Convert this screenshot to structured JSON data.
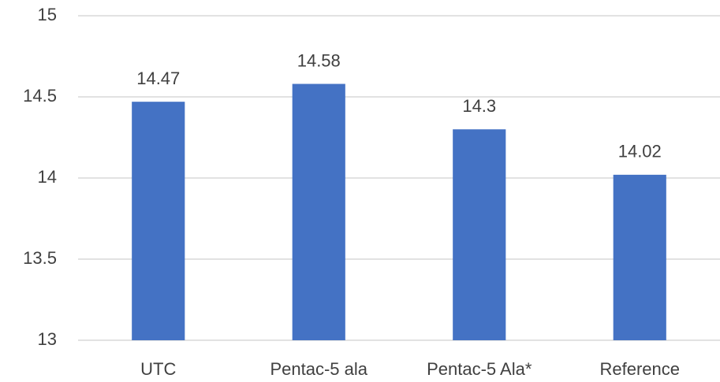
{
  "chart_data": {
    "type": "bar",
    "categories": [
      "UTC",
      "Pentac-5 ala",
      "Pentac-5 Ala*",
      "Reference"
    ],
    "values": [
      14.47,
      14.58,
      14.3,
      14.02
    ],
    "color": "#4472c4",
    "ylim": [
      13,
      15
    ],
    "yticks": [
      13,
      13.5,
      14,
      14.5,
      15
    ],
    "grid": true
  }
}
